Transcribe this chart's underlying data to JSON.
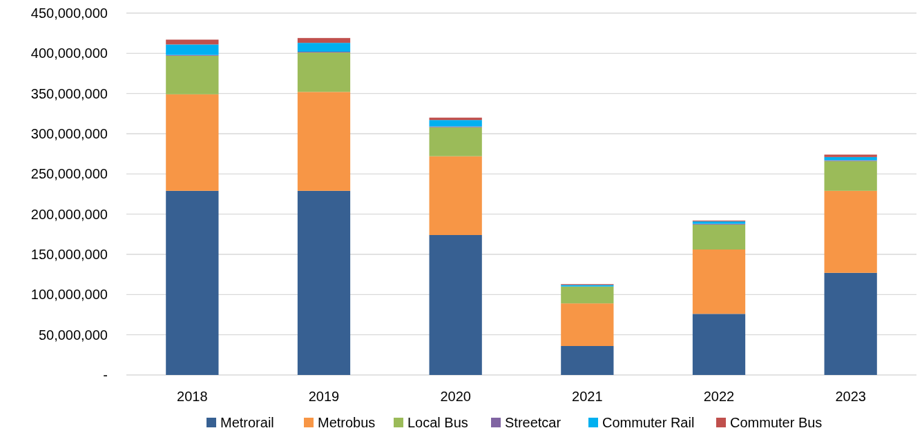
{
  "chart_data": {
    "type": "bar",
    "stacked": true,
    "categories": [
      "2018",
      "2019",
      "2020",
      "2021",
      "2022",
      "2023"
    ],
    "series": [
      {
        "name": "Metrorail",
        "color": "#376092",
        "values": [
          229000000,
          229000000,
          174000000,
          36000000,
          76000000,
          127000000
        ]
      },
      {
        "name": "Metrobus",
        "color": "#f79646",
        "values": [
          120000000,
          123000000,
          98000000,
          53000000,
          80000000,
          102000000
        ]
      },
      {
        "name": "Local Bus",
        "color": "#9bbb59",
        "values": [
          48000000,
          49000000,
          36000000,
          21000000,
          31000000,
          37000000
        ]
      },
      {
        "name": "Streetcar",
        "color": "#8064a2",
        "values": [
          1000000,
          1000000,
          1000000,
          0,
          1000000,
          1000000
        ]
      },
      {
        "name": "Commuter Rail",
        "color": "#00b0f0",
        "values": [
          13000000,
          11000000,
          8000000,
          2000000,
          3000000,
          4000000
        ]
      },
      {
        "name": "Commuter Bus",
        "color": "#c0504d",
        "values": [
          6000000,
          6000000,
          3000000,
          1000000,
          1000000,
          3000000
        ]
      }
    ],
    "ylim": [
      0,
      450000000
    ],
    "yticks": [
      {
        "value": 0,
        "label": "-"
      },
      {
        "value": 50000000,
        "label": "50,000,000"
      },
      {
        "value": 100000000,
        "label": "100,000,000"
      },
      {
        "value": 150000000,
        "label": "150,000,000"
      },
      {
        "value": 200000000,
        "label": "200,000,000"
      },
      {
        "value": 250000000,
        "label": "250,000,000"
      },
      {
        "value": 300000000,
        "label": "300,000,000"
      },
      {
        "value": 350000000,
        "label": "350,000,000"
      },
      {
        "value": 400000000,
        "label": "400,000,000"
      },
      {
        "value": 450000000,
        "label": "450,000,000"
      }
    ],
    "grid": "y",
    "legend": "bottom"
  }
}
